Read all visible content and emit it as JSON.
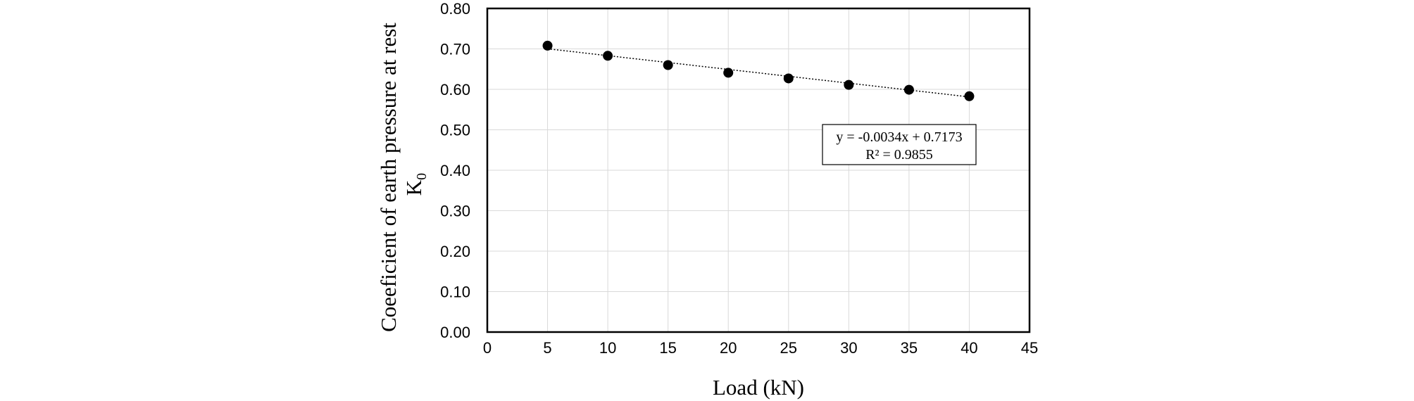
{
  "chart_data": {
    "type": "scatter",
    "title": "",
    "xlabel": "Load (kN)",
    "ylabel_main": "Coeeficient  of earth pressure  at rest",
    "ylabel_symbol": "K",
    "ylabel_subscript": "0",
    "xlim": [
      0,
      45
    ],
    "ylim": [
      0.0,
      0.8
    ],
    "xticks": [
      "0",
      "5",
      "10",
      "15",
      "20",
      "25",
      "30",
      "35",
      "40",
      "45"
    ],
    "yticks": [
      "0.00",
      "0.10",
      "0.20",
      "0.30",
      "0.40",
      "0.50",
      "0.60",
      "0.70",
      "0.80"
    ],
    "grid": true,
    "series": [
      {
        "x": [
          5,
          10,
          15,
          20,
          25,
          30,
          35,
          40
        ],
        "y": [
          0.708,
          0.683,
          0.66,
          0.641,
          0.627,
          0.611,
          0.599,
          0.583
        ],
        "marker_color": "#000000"
      }
    ],
    "trendline": {
      "slope": -0.0034,
      "intercept": 0.7173,
      "style": "dotted",
      "x_range": [
        5,
        40
      ]
    },
    "annotation": {
      "equation": "y = -0.0034x + 0.7173",
      "r2": "R² = 0.9855"
    }
  }
}
